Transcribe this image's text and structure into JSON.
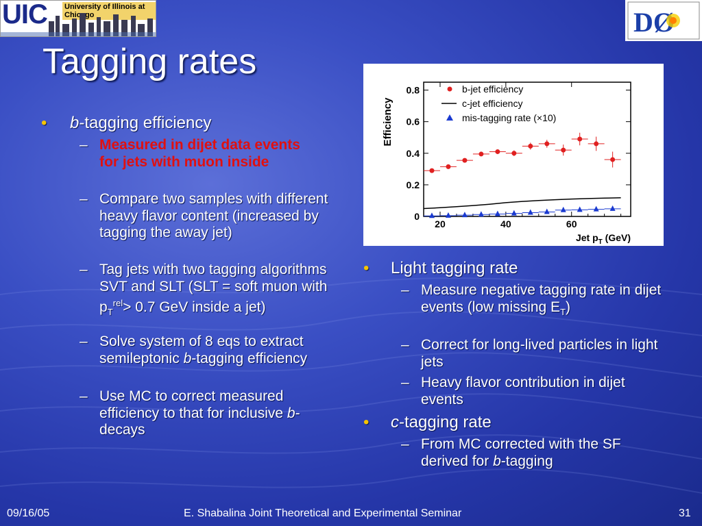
{
  "logos": {
    "uic_text": "UIC",
    "uic_name": "University of Illinois at Chicago",
    "d0_text": "DØ"
  },
  "title": "Tagging rates",
  "left": {
    "b1_italic": "b",
    "b1_text": "-tagging efficiency",
    "s1": "Measured in dijet data events for jets with muon inside",
    "s2": "Compare two samples with different heavy flavor content (increased by tagging the away jet)",
    "s3_a": "Tag jets with two tagging algorithms SVT and SLT (SLT = soft muon with p",
    "s3_sub": "T",
    "s3_sup": "rel",
    "s3_b": "> 0.7 GeV inside a jet)",
    "s4_a": "Solve system of 8 eqs to extract semileptonic ",
    "s4_i": "b",
    "s4_b": "-tagging efficiency",
    "s5_a": "Use MC to correct measured efficiency to that for inclusive ",
    "s5_i": "b",
    "s5_b": "-decays"
  },
  "right": {
    "b1": "Light tagging rate",
    "r1_a": "Measure negative tagging rate in dijet events (low missing E",
    "r1_sub": "T",
    "r1_b": ")",
    "r2": "Correct for long-lived particles in light jets",
    "r3": "Heavy flavor contribution in dijet events",
    "b2_i": "c",
    "b2": "-tagging rate",
    "r4_a": "From MC corrected with the SF derived for ",
    "r4_i": "b",
    "r4_b": "-tagging"
  },
  "chart_data": {
    "type": "scatter",
    "ylabel": "Efficiency",
    "xlabel": "Jet p",
    "xlabel_sub": "T",
    "xlabel_unit": " (GeV)",
    "xlim": [
      15,
      78
    ],
    "ylim": [
      0,
      0.85
    ],
    "xticks": [
      20,
      40,
      60
    ],
    "yticks": [
      0,
      0.2,
      0.4,
      0.6,
      0.8
    ],
    "ytick_labels": [
      "0",
      "0.2",
      "0.4",
      "0.6",
      "0.8"
    ],
    "legend_placement": "top-left",
    "series": [
      {
        "name": "b-jet efficiency",
        "marker": "circle",
        "color": "#e02020",
        "x": [
          17.5,
          22.5,
          27.5,
          32.5,
          37.5,
          42.5,
          47.5,
          52.5,
          57.5,
          62.5,
          67.5,
          72.5
        ],
        "y": [
          0.29,
          0.315,
          0.355,
          0.395,
          0.41,
          0.4,
          0.445,
          0.46,
          0.42,
          0.49,
          0.46,
          0.36
        ],
        "yerr": [
          0.01,
          0.012,
          0.012,
          0.012,
          0.015,
          0.018,
          0.022,
          0.025,
          0.035,
          0.04,
          0.045,
          0.05
        ]
      },
      {
        "name": "c-jet efficiency",
        "marker": "line",
        "color": "#000000",
        "x": [
          15,
          20,
          25,
          30,
          35,
          40,
          45,
          50,
          55,
          60,
          65,
          70,
          75
        ],
        "y": [
          0.05,
          0.055,
          0.062,
          0.069,
          0.077,
          0.087,
          0.095,
          0.101,
          0.106,
          0.11,
          0.113,
          0.116,
          0.118
        ]
      },
      {
        "name": "mis-tagging rate (×10)",
        "marker": "triangle",
        "color": "#1a3ad0",
        "x": [
          17.5,
          22.5,
          27.5,
          32.5,
          37.5,
          42.5,
          47.5,
          52.5,
          57.5,
          62.5,
          67.5,
          72.5
        ],
        "y": [
          0.003,
          0.005,
          0.008,
          0.012,
          0.015,
          0.019,
          0.024,
          0.028,
          0.04,
          0.042,
          0.045,
          0.048
        ]
      }
    ]
  },
  "footer": {
    "date": "09/16/05",
    "center": "E. Shabalina Joint Theoretical and Experimental Seminar",
    "page": "31"
  },
  "colors": {
    "bullet": "#f5c400",
    "highlight": "#e01010"
  }
}
